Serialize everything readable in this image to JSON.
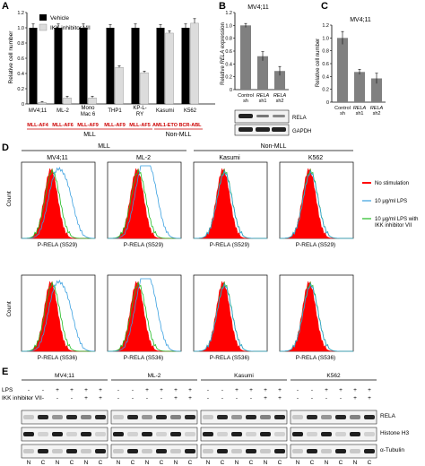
{
  "panels": {
    "A": "A",
    "B": "B",
    "C": "C",
    "D": "D",
    "E": "E"
  },
  "panelA": {
    "ylabel": "Relative cell number",
    "yticks": [
      "0",
      "0.2",
      "0.4",
      "0.6",
      "0.8",
      "1.0",
      "1.2"
    ],
    "legend": [
      "Vehicle",
      "IKK inhibitor VII"
    ],
    "cells": [
      "MV4;11",
      "ML-2",
      "Mono Mac 6",
      "THP1",
      "KP-L-RY",
      "Kasumi",
      "K562"
    ],
    "fusions": [
      "MLL-AF4",
      "MLL-AF6",
      "MLL-AF9",
      "MLL-AF9",
      "MLL-AF5",
      "AML1-ETO",
      "BCR-ABL"
    ],
    "group_mll": "MLL",
    "group_nonmll": "Non-MLL",
    "colors": {
      "vehicle": "#000000",
      "inhibitor": "#dcdcdc",
      "fusion_text": "#cc0000"
    }
  },
  "panelB": {
    "title": "MV4;11",
    "ylabel": "Relative RELA expression",
    "yticks": [
      "0",
      "0.2",
      "0.4",
      "0.6",
      "0.8",
      "1.0",
      "1.2"
    ],
    "xlabels": [
      [
        "Control",
        "sh"
      ],
      [
        "RELA",
        "sh1"
      ],
      [
        "RELA",
        "sh2"
      ]
    ],
    "blot_labels": [
      "RELA",
      "GAPDH"
    ]
  },
  "panelC": {
    "title": "MV4;11",
    "ylabel": "Relative cell number",
    "yticks": [
      "0",
      "0.2",
      "0.4",
      "0.6",
      "0.8",
      "1.0",
      "1.2"
    ],
    "xlabels": [
      [
        "Control",
        "sh"
      ],
      [
        "RELA",
        "sh1"
      ],
      [
        "RELA",
        "sh2"
      ]
    ]
  },
  "panelD": {
    "group_mll": "MLL",
    "group_nonmll": "Non-MLL",
    "cells": [
      "MV4;11",
      "ML-2",
      "Kasumi",
      "K562"
    ],
    "ylabel": "Count",
    "xlabel_row1": "P-RELA (S529)",
    "xlabel_row2": "P-RELA (S536)",
    "legend": [
      "No stimulation",
      "10 μg/ml LPS",
      "10 μg/ml LPS with IKK inhibitor VII"
    ],
    "colors": {
      "no_stim": "#ff0000",
      "lps": "#3aa0e0",
      "lps_inh": "#22bb22"
    }
  },
  "panelE": {
    "cells": [
      "MV4;11",
      "ML-2",
      "Kasumi",
      "K562"
    ],
    "row_labels": [
      "LPS",
      "IKK inhibitor VII"
    ],
    "lps_marks": [
      "-",
      "-",
      "+",
      "+",
      "+",
      "+"
    ],
    "inh_marks": [
      "-",
      "-",
      "-",
      "-",
      "+",
      "+"
    ],
    "fraction_labels": [
      "N",
      "C",
      "N",
      "C",
      "N",
      "C"
    ],
    "blot_labels": [
      "RELA",
      "Histone H3",
      "α-Tubulin"
    ]
  },
  "chart_data": [
    {
      "type": "bar",
      "panel": "A",
      "categories": [
        "MV4;11",
        "ML-2",
        "Mono Mac 6",
        "THP1",
        "KP-L-RY",
        "Kasumi",
        "K562"
      ],
      "series": [
        {
          "name": "Vehicle",
          "values": [
            1.0,
            1.0,
            1.0,
            1.0,
            1.0,
            1.0,
            1.0
          ],
          "errors": [
            0.05,
            0.05,
            0.05,
            0.04,
            0.05,
            0.04,
            0.05
          ]
        },
        {
          "name": "IKK inhibitor VII",
          "values": [
            0.02,
            0.08,
            0.08,
            0.48,
            0.41,
            0.93,
            1.06
          ],
          "errors": [
            0.01,
            0.02,
            0.02,
            0.02,
            0.02,
            0.03,
            0.06
          ]
        }
      ],
      "ylabel": "Relative cell number",
      "ylim": [
        0,
        1.2
      ]
    },
    {
      "type": "bar",
      "panel": "B",
      "title": "MV4;11",
      "categories": [
        "Control sh",
        "RELA sh1",
        "RELA sh2"
      ],
      "values": [
        1.0,
        0.52,
        0.29
      ],
      "errors": [
        0.03,
        0.07,
        0.07
      ],
      "ylabel": "Relative RELA expression",
      "ylim": [
        0,
        1.2
      ]
    },
    {
      "type": "bar",
      "panel": "C",
      "title": "MV4;11",
      "categories": [
        "Control sh",
        "RELA sh1",
        "RELA sh2"
      ],
      "values": [
        1.0,
        0.47,
        0.37
      ],
      "errors": [
        0.1,
        0.04,
        0.08
      ],
      "ylabel": "Relative cell number",
      "ylim": [
        0,
        1.2
      ]
    }
  ]
}
